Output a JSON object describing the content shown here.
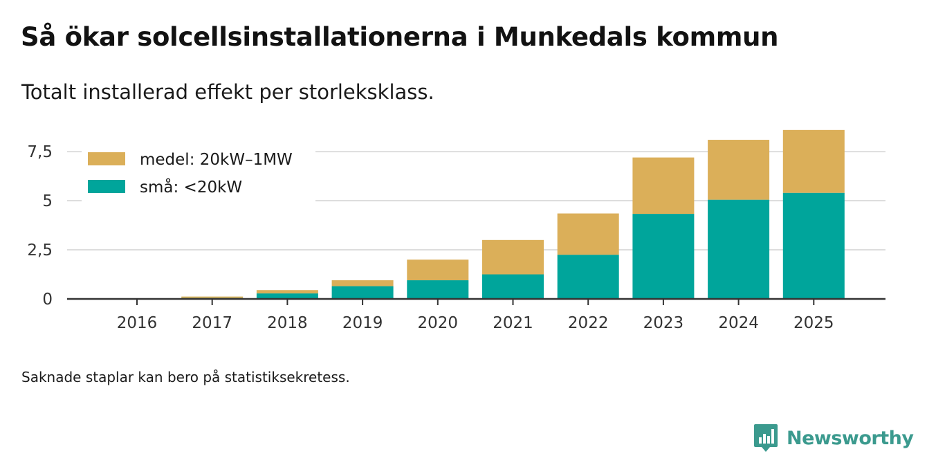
{
  "title": "Så ökar solcellsinstallationerna i Munkedals kommun",
  "subtitle": "Totalt installerad effekt per storleksklass.",
  "footnote": "Saknade staplar kan bero på statistiksekretess.",
  "brand": {
    "name": "Newsworthy",
    "icon": "newsworthy-logo-icon",
    "color": "#3b9a8e"
  },
  "chart_data": {
    "type": "bar",
    "stacked": true,
    "title": "Så ökar solcellsinstallationerna i Munkedals kommun",
    "subtitle": "Totalt installerad effekt per storleksklass.",
    "xlabel": "",
    "ylabel": "",
    "ylim": [
      0,
      8.7
    ],
    "yticks": [
      0,
      2.5,
      5,
      7.5
    ],
    "ytick_labels": [
      "0",
      "2,5",
      "5",
      "7,5"
    ],
    "grid": true,
    "legend_position": "top-left",
    "categories": [
      "2016",
      "2017",
      "2018",
      "2019",
      "2020",
      "2021",
      "2022",
      "2023",
      "2024",
      "2025"
    ],
    "series": [
      {
        "name": "små: <20kW",
        "color": "#00a59b",
        "values": [
          0.02,
          0.05,
          0.28,
          0.65,
          0.95,
          1.25,
          2.25,
          4.33,
          5.05,
          5.4
        ]
      },
      {
        "name": "medel: 20kW–1MW",
        "color": "#dbaf59",
        "values": [
          0.0,
          0.07,
          0.17,
          0.3,
          1.05,
          1.75,
          2.1,
          2.87,
          3.05,
          3.2
        ]
      }
    ],
    "legend_order": [
      "medel: 20kW–1MW",
      "små: <20kW"
    ]
  }
}
